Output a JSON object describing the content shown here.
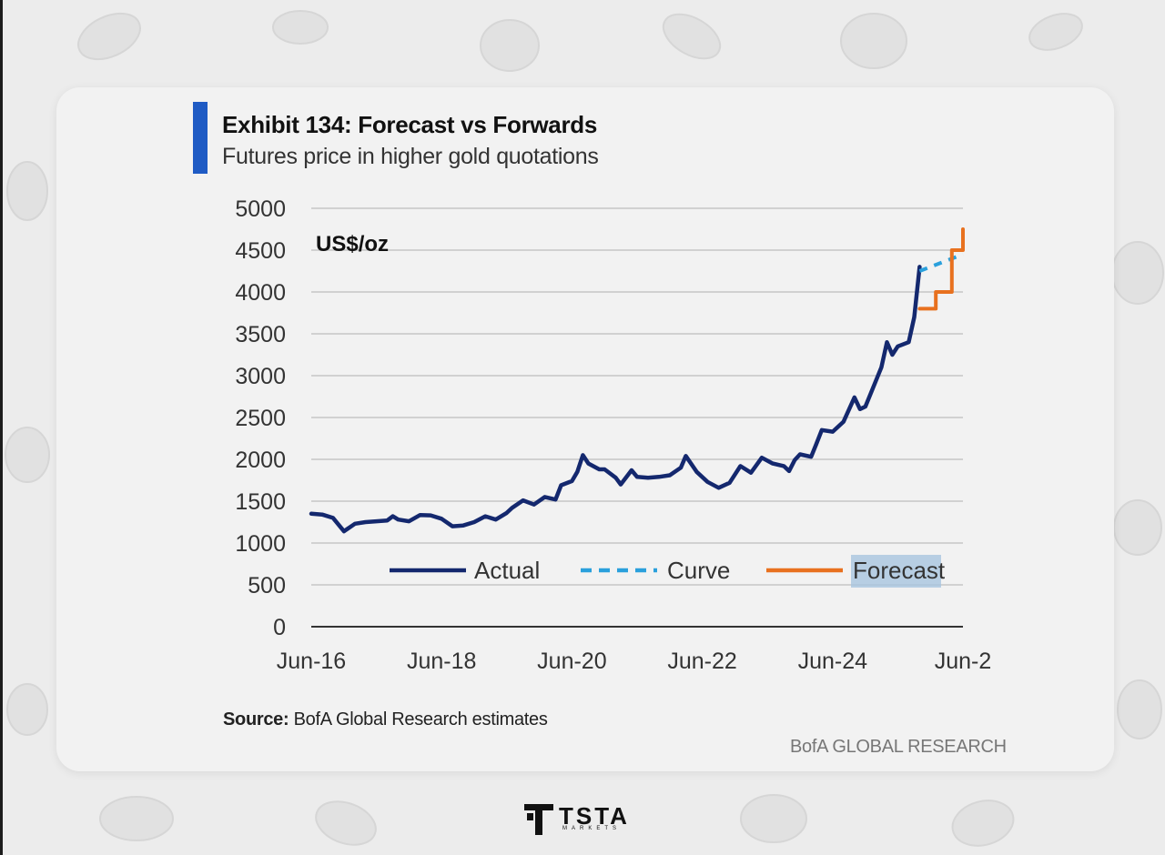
{
  "header": {
    "title": "Exhibit 134: Forecast vs Forwards",
    "subtitle": "Futures price in higher gold quotations"
  },
  "footer": {
    "source_label": "Source:",
    "source_text": "BofA Global Research estimates",
    "publisher": "BofA GLOBAL RESEARCH"
  },
  "logo": {
    "word": "TSTA",
    "sub": "MARKETS"
  },
  "colors": {
    "accent": "#1f5bc4",
    "actual": "#14286e",
    "curve": "#2aa0dc",
    "forecast": "#e8711f"
  },
  "chart_data": {
    "type": "line",
    "unit_label": "US$/oz",
    "ylim": [
      0,
      5000
    ],
    "yticks": [
      0,
      500,
      1000,
      1500,
      2000,
      2500,
      3000,
      3500,
      4000,
      4500,
      5000
    ],
    "xticks": [
      "Jun-16",
      "Jun-18",
      "Jun-20",
      "Jun-22",
      "Jun-24",
      "Jun-2"
    ],
    "xlim": [
      "2016-06",
      "2026-06"
    ],
    "grid": true,
    "legend_position": "bottom",
    "series": [
      {
        "name": "Actual",
        "style": "solid",
        "points": [
          [
            "2016-06-01",
            1350
          ],
          [
            "2016-08-01",
            1340
          ],
          [
            "2016-10-01",
            1300
          ],
          [
            "2016-12-01",
            1140
          ],
          [
            "2017-02-01",
            1230
          ],
          [
            "2017-04-01",
            1250
          ],
          [
            "2017-06-01",
            1260
          ],
          [
            "2017-08-01",
            1270
          ],
          [
            "2017-09-01",
            1320
          ],
          [
            "2017-10-01",
            1280
          ],
          [
            "2017-12-01",
            1260
          ],
          [
            "2018-02-01",
            1335
          ],
          [
            "2018-04-01",
            1330
          ],
          [
            "2018-06-01",
            1290
          ],
          [
            "2018-08-01",
            1200
          ],
          [
            "2018-10-01",
            1210
          ],
          [
            "2018-12-01",
            1250
          ],
          [
            "2019-02-01",
            1320
          ],
          [
            "2019-04-01",
            1280
          ],
          [
            "2019-06-01",
            1360
          ],
          [
            "2019-07-01",
            1420
          ],
          [
            "2019-09-01",
            1510
          ],
          [
            "2019-11-01",
            1460
          ],
          [
            "2020-01-01",
            1550
          ],
          [
            "2020-03-01",
            1520
          ],
          [
            "2020-04-01",
            1690
          ],
          [
            "2020-06-01",
            1740
          ],
          [
            "2020-07-01",
            1850
          ],
          [
            "2020-08-01",
            2050
          ],
          [
            "2020-09-01",
            1950
          ],
          [
            "2020-11-01",
            1880
          ],
          [
            "2020-12-01",
            1880
          ],
          [
            "2021-02-01",
            1780
          ],
          [
            "2021-03-01",
            1700
          ],
          [
            "2021-05-01",
            1870
          ],
          [
            "2021-06-01",
            1790
          ],
          [
            "2021-08-01",
            1780
          ],
          [
            "2021-10-01",
            1790
          ],
          [
            "2021-12-01",
            1810
          ],
          [
            "2022-02-01",
            1900
          ],
          [
            "2022-03-01",
            2040
          ],
          [
            "2022-05-01",
            1850
          ],
          [
            "2022-07-01",
            1730
          ],
          [
            "2022-09-01",
            1660
          ],
          [
            "2022-11-01",
            1720
          ],
          [
            "2023-01-01",
            1920
          ],
          [
            "2023-03-01",
            1840
          ],
          [
            "2023-05-01",
            2020
          ],
          [
            "2023-07-01",
            1950
          ],
          [
            "2023-09-01",
            1920
          ],
          [
            "2023-10-01",
            1860
          ],
          [
            "2023-11-01",
            1990
          ],
          [
            "2023-12-01",
            2060
          ],
          [
            "2024-02-01",
            2030
          ],
          [
            "2024-03-01",
            2180
          ],
          [
            "2024-04-01",
            2350
          ],
          [
            "2024-06-01",
            2330
          ],
          [
            "2024-08-01",
            2450
          ],
          [
            "2024-10-01",
            2740
          ],
          [
            "2024-11-01",
            2600
          ],
          [
            "2024-12-01",
            2630
          ],
          [
            "2025-01-01",
            2790
          ],
          [
            "2025-03-01",
            3100
          ],
          [
            "2025-04-01",
            3400
          ],
          [
            "2025-05-01",
            3250
          ],
          [
            "2025-06-01",
            3350
          ],
          [
            "2025-08-01",
            3400
          ],
          [
            "2025-09-01",
            3700
          ],
          [
            "2025-10-01",
            4300
          ]
        ]
      },
      {
        "name": "Curve",
        "style": "dashed",
        "points": [
          [
            "2025-10-01",
            4250
          ],
          [
            "2026-06-01",
            4450
          ]
        ]
      },
      {
        "name": "Forecast",
        "style": "solid",
        "points": [
          [
            "2025-10-01",
            3800
          ],
          [
            "2025-12-31",
            3800
          ],
          [
            "2025-12-31",
            4000
          ],
          [
            "2026-03-31",
            4000
          ],
          [
            "2026-03-31",
            4500
          ],
          [
            "2026-06-01",
            4500
          ],
          [
            "2026-06-01",
            4750
          ]
        ]
      }
    ]
  }
}
